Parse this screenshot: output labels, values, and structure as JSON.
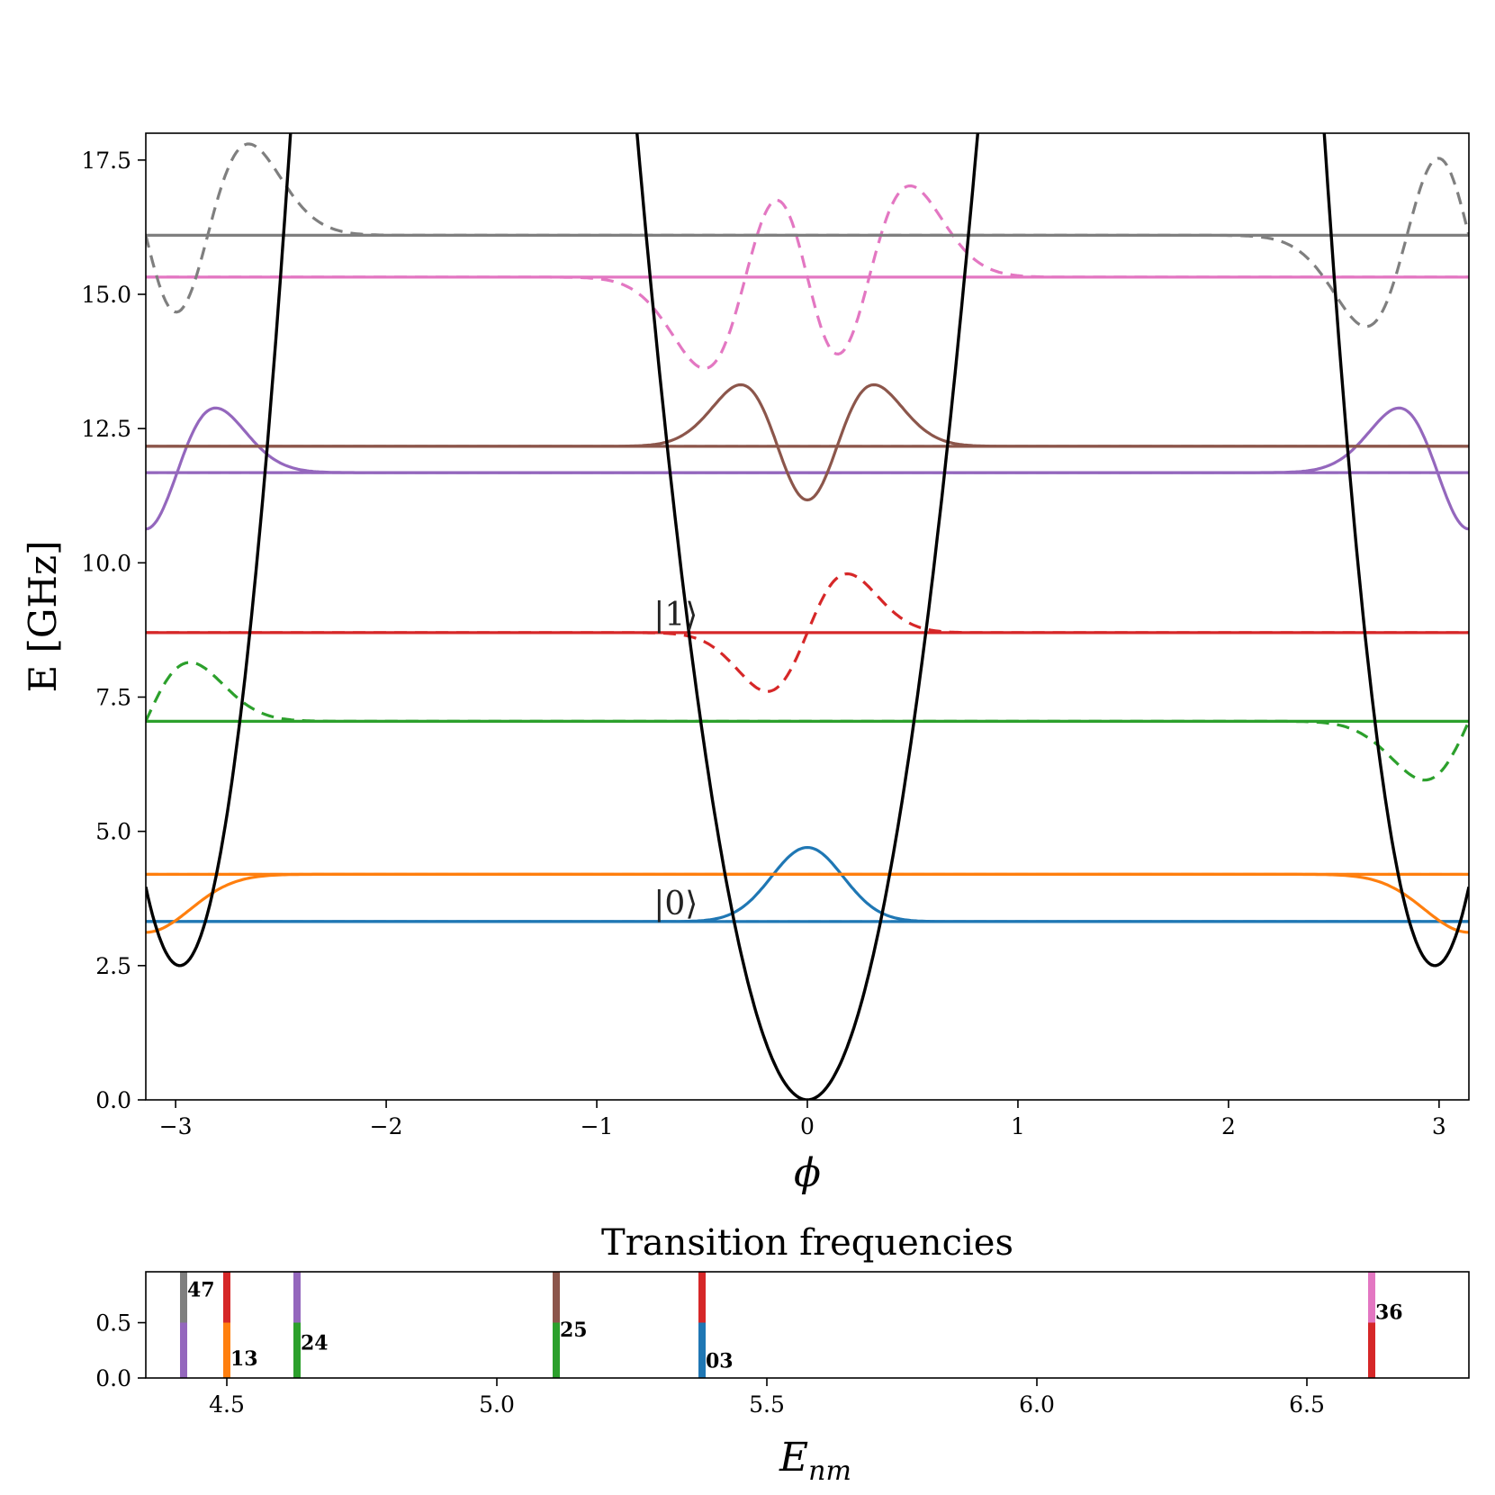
{
  "chart_data": [
    {
      "type": "line",
      "title": "",
      "xlabel": "ϕ",
      "ylabel": "E [GHz]",
      "xlim": [
        -3.14159,
        3.14159
      ],
      "ylim": [
        0,
        18
      ],
      "xticks": [
        -3,
        -2,
        -1,
        0,
        1,
        2,
        3
      ],
      "xtick_labels": [
        "−3",
        "−2",
        "−1",
        "0",
        "1",
        "2",
        "3"
      ],
      "yticks": [
        0,
        2.5,
        5,
        7.5,
        10,
        12.5,
        15,
        17.5
      ],
      "ytick_labels": [
        "0.0",
        "2.5",
        "5.0",
        "7.5",
        "10.0",
        "12.5",
        "15.0",
        "17.5"
      ],
      "grid": false,
      "potential": {
        "color": "#000000",
        "dips": [
          {
            "x": 0,
            "value": 0,
            "width": 0.2
          },
          {
            "x": -2.98,
            "value": 2.5,
            "width": 0.14
          },
          {
            "x": 2.98,
            "value": 2.5,
            "width": 0.14
          }
        ],
        "plateau": 3.7
      },
      "levels": [
        {
          "index": 0,
          "energy": 3.32,
          "color": "#1f77b4",
          "wave_center": 0,
          "wave_amp": 1.38,
          "wave_width": 0.17,
          "wave_nodes": 0
        },
        {
          "index": 1,
          "energy": 4.2,
          "color": "#ff7f0e",
          "wave_center": 3.14159,
          "wave_amp": -1.08,
          "wave_width": 0.21,
          "wave_nodes": 0
        },
        {
          "index": 2,
          "energy": 7.05,
          "color": "#2ca02c",
          "wave_center": 3.14159,
          "wave_amp": 1.05,
          "wave_width": 0.21,
          "wave_nodes": 1
        },
        {
          "index": 3,
          "energy": 8.7,
          "color": "#d62728",
          "wave_center": 0,
          "wave_amp": 1.05,
          "wave_width": 0.19,
          "wave_nodes": 1
        },
        {
          "index": 4,
          "energy": 11.68,
          "color": "#9467bd",
          "wave_center": 3.14159,
          "wave_amp": 1.05,
          "wave_width": 0.21,
          "wave_nodes": 2
        },
        {
          "index": 5,
          "energy": 12.17,
          "color": "#8c564b",
          "wave_center": 0,
          "wave_amp": 1.0,
          "wave_width": 0.2,
          "wave_nodes": 2
        },
        {
          "index": 6,
          "energy": 15.32,
          "color": "#e377c2",
          "wave_center": 0,
          "wave_amp": 0.95,
          "wave_width": 0.24,
          "wave_nodes": 3
        },
        {
          "index": 7,
          "energy": 16.1,
          "color": "#7f7f7f",
          "wave_center": 3.14159,
          "wave_amp": 0.95,
          "wave_width": 0.24,
          "wave_nodes": 3
        }
      ],
      "annotations": [
        {
          "text": "|0⟩",
          "x": -0.73,
          "y": 3.32
        },
        {
          "text": "|1⟩",
          "x": -0.73,
          "y": 8.7
        }
      ]
    },
    {
      "type": "bar",
      "title": "Transition frequencies",
      "xlabel": "E",
      "xlabel_sub": "nm",
      "xlim": [
        4.35,
        6.8
      ],
      "ylim": [
        0,
        0.96
      ],
      "xticks": [
        4.5,
        5.0,
        5.5,
        6.0,
        6.5
      ],
      "xtick_labels": [
        "4.5",
        "5.0",
        "5.5",
        "6.0",
        "6.5"
      ],
      "yticks": [
        0,
        0.5
      ],
      "ytick_labels": [
        "0.0",
        "0.5"
      ],
      "transitions": [
        {
          "label": "47",
          "x": 4.42,
          "lower_color": "#9467bd",
          "upper_color": "#7f7f7f",
          "label_y": 0.8
        },
        {
          "label": "13",
          "x": 4.5,
          "lower_color": "#ff7f0e",
          "upper_color": "#d62728",
          "label_y": 0.18
        },
        {
          "label": "24",
          "x": 4.63,
          "lower_color": "#2ca02c",
          "upper_color": "#9467bd",
          "label_y": 0.32
        },
        {
          "label": "25",
          "x": 5.11,
          "lower_color": "#2ca02c",
          "upper_color": "#8c564b",
          "label_y": 0.44
        },
        {
          "label": "03",
          "x": 5.38,
          "lower_color": "#1f77b4",
          "upper_color": "#d62728",
          "label_y": 0.16
        },
        {
          "label": "36",
          "x": 6.62,
          "lower_color": "#d62728",
          "upper_color": "#e377c2",
          "label_y": 0.6
        }
      ]
    }
  ]
}
